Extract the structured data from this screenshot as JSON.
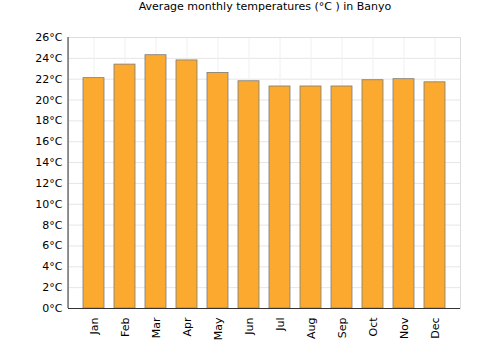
{
  "chart_data": {
    "type": "bar",
    "title": "Average monthly temperatures (°C ) in Banyo",
    "categories": [
      "Jan",
      "Feb",
      "Mar",
      "Apr",
      "May",
      "Jun",
      "Jul",
      "Aug",
      "Sep",
      "Oct",
      "Nov",
      "Dec"
    ],
    "values": [
      22.1,
      23.4,
      24.3,
      23.8,
      22.6,
      21.8,
      21.3,
      21.3,
      21.3,
      21.9,
      22.0,
      21.7
    ],
    "color": "#fbaa2f",
    "ylim": [
      0,
      26
    ],
    "yticks": [
      {
        "value": 0,
        "label": "0°C"
      },
      {
        "value": 2,
        "label": "2°C"
      },
      {
        "value": 4,
        "label": "4°C"
      },
      {
        "value": 6,
        "label": "6°C"
      },
      {
        "value": 8,
        "label": "8°C"
      },
      {
        "value": 10,
        "label": "10°C"
      },
      {
        "value": 12,
        "label": "12°C"
      },
      {
        "value": 14,
        "label": "14°C"
      },
      {
        "value": 16,
        "label": "16°C"
      },
      {
        "value": 18,
        "label": "18°C"
      },
      {
        "value": 20,
        "label": "20°C"
      },
      {
        "value": 22,
        "label": "22°C"
      },
      {
        "value": 24,
        "label": "24°C"
      },
      {
        "value": 26,
        "label": "26°C"
      }
    ],
    "grid": true
  }
}
